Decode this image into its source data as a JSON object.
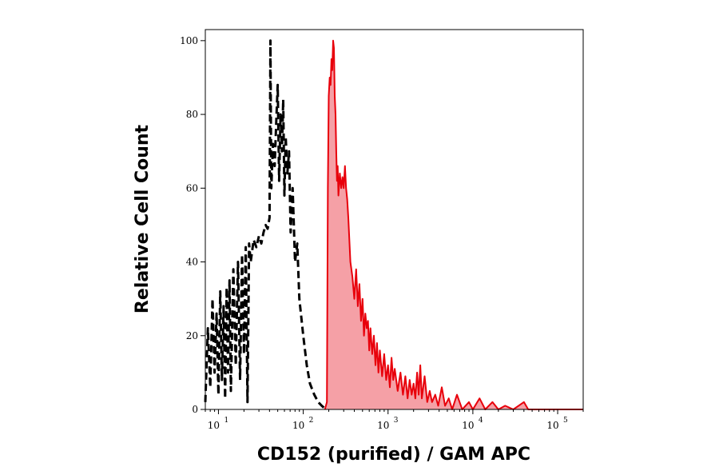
{
  "chart_data": {
    "type": "area",
    "title": "",
    "xlabel": "CD152 (purified) / GAM APC",
    "ylabel": "Relative Cell Count",
    "xscale": "log",
    "xlim": [
      7,
      200000
    ],
    "ylim": [
      0,
      103
    ],
    "grid": false,
    "x_ticks": [
      {
        "value": 10,
        "base": "10",
        "exp": "1"
      },
      {
        "value": 100,
        "base": "10",
        "exp": "2"
      },
      {
        "value": 1000,
        "base": "10",
        "exp": "3"
      },
      {
        "value": 10000,
        "base": "10",
        "exp": "4"
      },
      {
        "value": 100000,
        "base": "10",
        "exp": "5"
      }
    ],
    "y_ticks": [
      0,
      20,
      40,
      60,
      80,
      100
    ],
    "series": [
      {
        "style": "dashed",
        "color": "#000000",
        "fill": false,
        "points": [
          [
            7,
            2
          ],
          [
            7.5,
            22
          ],
          [
            8,
            6
          ],
          [
            8.5,
            30
          ],
          [
            9,
            10
          ],
          [
            9.5,
            26
          ],
          [
            10,
            4
          ],
          [
            10.5,
            32
          ],
          [
            11,
            8
          ],
          [
            11.5,
            28
          ],
          [
            12,
            3
          ],
          [
            12.5,
            33
          ],
          [
            13,
            10
          ],
          [
            13.5,
            35
          ],
          [
            14,
            5
          ],
          [
            15,
            38
          ],
          [
            16,
            12
          ],
          [
            17,
            40
          ],
          [
            18,
            8
          ],
          [
            19,
            42
          ],
          [
            20,
            15
          ],
          [
            21,
            44
          ],
          [
            22,
            2
          ],
          [
            23,
            45
          ],
          [
            24,
            40
          ],
          [
            26,
            46
          ],
          [
            28,
            44
          ],
          [
            30,
            47
          ],
          [
            32,
            45
          ],
          [
            34,
            48
          ],
          [
            36,
            50
          ],
          [
            38,
            49
          ],
          [
            40,
            52
          ],
          [
            41,
            100
          ],
          [
            42,
            60
          ],
          [
            44,
            72
          ],
          [
            46,
            66
          ],
          [
            48,
            78
          ],
          [
            50,
            88
          ],
          [
            52,
            62
          ],
          [
            54,
            80
          ],
          [
            56,
            70
          ],
          [
            58,
            84
          ],
          [
            60,
            58
          ],
          [
            62,
            74
          ],
          [
            65,
            64
          ],
          [
            68,
            70
          ],
          [
            71,
            48
          ],
          [
            75,
            60
          ],
          [
            80,
            40
          ],
          [
            85,
            45
          ],
          [
            90,
            30
          ],
          [
            100,
            20
          ],
          [
            110,
            12
          ],
          [
            120,
            7
          ],
          [
            135,
            4
          ],
          [
            150,
            2
          ],
          [
            165,
            1
          ],
          [
            185,
            0
          ]
        ]
      },
      {
        "style": "solid",
        "color": "#e8000b",
        "fill": true,
        "fill_color": "#f5a0a6",
        "points": [
          [
            180,
            0
          ],
          [
            190,
            2
          ],
          [
            195,
            60
          ],
          [
            200,
            85
          ],
          [
            205,
            90
          ],
          [
            210,
            88
          ],
          [
            215,
            95
          ],
          [
            220,
            92
          ],
          [
            225,
            100
          ],
          [
            230,
            98
          ],
          [
            235,
            85
          ],
          [
            240,
            80
          ],
          [
            245,
            70
          ],
          [
            250,
            62
          ],
          [
            255,
            66
          ],
          [
            260,
            58
          ],
          [
            270,
            64
          ],
          [
            280,
            60
          ],
          [
            290,
            63
          ],
          [
            300,
            60
          ],
          [
            310,
            66
          ],
          [
            320,
            60
          ],
          [
            330,
            57
          ],
          [
            340,
            52
          ],
          [
            360,
            40
          ],
          [
            380,
            36
          ],
          [
            400,
            30
          ],
          [
            420,
            38
          ],
          [
            440,
            28
          ],
          [
            460,
            34
          ],
          [
            480,
            24
          ],
          [
            500,
            30
          ],
          [
            520,
            20
          ],
          [
            540,
            26
          ],
          [
            560,
            22
          ],
          [
            580,
            24
          ],
          [
            600,
            16
          ],
          [
            620,
            22
          ],
          [
            650,
            15
          ],
          [
            680,
            20
          ],
          [
            710,
            12
          ],
          [
            740,
            18
          ],
          [
            770,
            10
          ],
          [
            800,
            16
          ],
          [
            850,
            9
          ],
          [
            900,
            15
          ],
          [
            950,
            8
          ],
          [
            1000,
            12
          ],
          [
            1050,
            6
          ],
          [
            1100,
            14
          ],
          [
            1150,
            8
          ],
          [
            1200,
            11
          ],
          [
            1300,
            5
          ],
          [
            1400,
            10
          ],
          [
            1500,
            4
          ],
          [
            1600,
            9
          ],
          [
            1700,
            3
          ],
          [
            1800,
            8
          ],
          [
            1900,
            4
          ],
          [
            2000,
            7
          ],
          [
            2100,
            3
          ],
          [
            2200,
            10
          ],
          [
            2300,
            4
          ],
          [
            2400,
            12
          ],
          [
            2500,
            3
          ],
          [
            2700,
            9
          ],
          [
            2900,
            2
          ],
          [
            3100,
            5
          ],
          [
            3300,
            2
          ],
          [
            3600,
            4
          ],
          [
            3900,
            1
          ],
          [
            4300,
            6
          ],
          [
            4700,
            1
          ],
          [
            5200,
            3
          ],
          [
            5700,
            0
          ],
          [
            6500,
            4
          ],
          [
            7500,
            0
          ],
          [
            9000,
            2
          ],
          [
            10000,
            0
          ],
          [
            12000,
            3
          ],
          [
            14000,
            0
          ],
          [
            17000,
            2
          ],
          [
            20000,
            0
          ],
          [
            24000,
            1
          ],
          [
            30000,
            0
          ],
          [
            40000,
            2
          ],
          [
            45000,
            0
          ],
          [
            60000,
            0
          ],
          [
            100000,
            0
          ],
          [
            200000,
            0
          ]
        ]
      }
    ]
  }
}
